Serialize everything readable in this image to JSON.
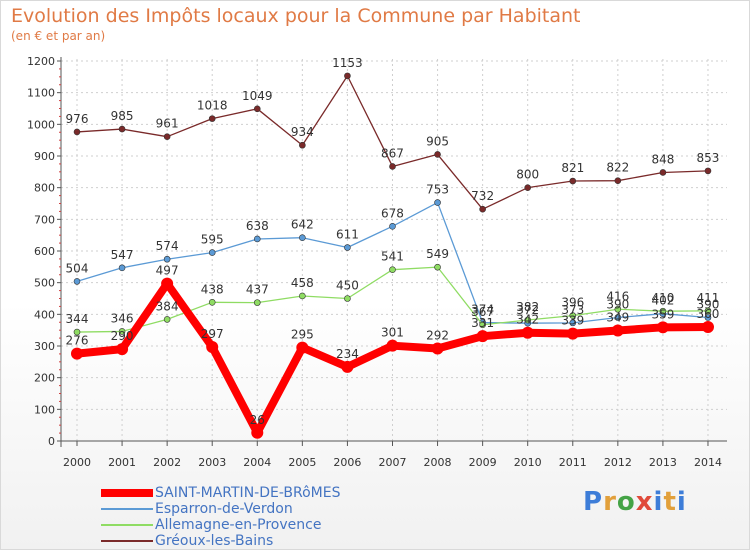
{
  "title": "Evolution des Impôts locaux pour la Commune par Habitant",
  "subtitle": "(en € et par an)",
  "logo": {
    "chars": [
      "P",
      "r",
      "o",
      "x",
      "i",
      "t",
      "i"
    ],
    "colors": [
      "#3d7dd8",
      "#e2a03b",
      "#44a346",
      "#e04a3a",
      "#3d7dd8",
      "#e2a03b",
      "#3d7dd8"
    ]
  },
  "chart_data": {
    "type": "line",
    "title": "Evolution des Impôts locaux pour la Commune par Habitant",
    "ylabel": "(en € et par an)",
    "xlabel": "",
    "ylim": [
      0,
      1200
    ],
    "yticks": [
      0,
      100,
      200,
      300,
      400,
      500,
      600,
      700,
      800,
      900,
      1000,
      1100,
      1200
    ],
    "x": [
      "2000",
      "2001",
      "2002",
      "2003",
      "2004",
      "2005",
      "2006",
      "2007",
      "2008",
      "2009",
      "2010",
      "2011",
      "2012",
      "2013",
      "2014"
    ],
    "grid": true,
    "series": [
      {
        "name": "Gréoux-les-Bains",
        "color": "#7a2a2a",
        "width": 1.3,
        "marker": 3,
        "values": [
          976,
          985,
          961,
          1018,
          1049,
          934,
          1153,
          867,
          905,
          732,
          800,
          821,
          822,
          848,
          853
        ],
        "labels": [
          "976",
          "985",
          "961",
          "1018",
          "1049",
          "934",
          "1153",
          "867",
          "905",
          "732",
          "800",
          "821",
          "822",
          "848",
          "853"
        ]
      },
      {
        "name": "Esparron-de-Verdon",
        "color": "#5b9ad5",
        "width": 1.3,
        "marker": 3,
        "values": [
          504,
          547,
          574,
          595,
          638,
          642,
          611,
          678,
          753,
          374,
          372,
          373,
          390,
          402,
          390
        ],
        "labels": [
          "504",
          "547",
          "574",
          "595",
          "638",
          "642",
          "611",
          "678",
          "753",
          "374",
          "372",
          "373",
          "390",
          "402",
          "390"
        ]
      },
      {
        "name": "Allemagne-en-Provence",
        "color": "#8fdc63",
        "width": 1.3,
        "marker": 3,
        "values": [
          344,
          346,
          384,
          438,
          437,
          458,
          450,
          541,
          549,
          367,
          382,
          396,
          416,
          410,
          411
        ],
        "labels": [
          "344",
          "346",
          "384",
          "438",
          "437",
          "458",
          "450",
          "541",
          "549",
          "367",
          "382",
          "396",
          "416",
          "410",
          "411"
        ]
      },
      {
        "name": "SAINT-MARTIN-DE-BRôMES",
        "color": "#ff0000",
        "width": 8,
        "marker": 6,
        "values": [
          276,
          290,
          497,
          297,
          26,
          295,
          234,
          301,
          292,
          331,
          342,
          339,
          349,
          359,
          360
        ],
        "labels": [
          "276",
          "290",
          "497",
          "297",
          "26",
          "295",
          "234",
          "301",
          "292",
          "331",
          "342",
          "339",
          "349",
          "359",
          "360"
        ]
      }
    ]
  },
  "legend": [
    {
      "name": "SAINT-MARTIN-DE-BRôMES",
      "color": "#ff0000",
      "thickness": 8
    },
    {
      "name": "Esparron-de-Verdon",
      "color": "#5b9ad5",
      "thickness": 2
    },
    {
      "name": "Allemagne-en-Provence",
      "color": "#8fdc63",
      "thickness": 2
    },
    {
      "name": "Gréoux-les-Bains",
      "color": "#7a2a2a",
      "thickness": 2
    }
  ]
}
